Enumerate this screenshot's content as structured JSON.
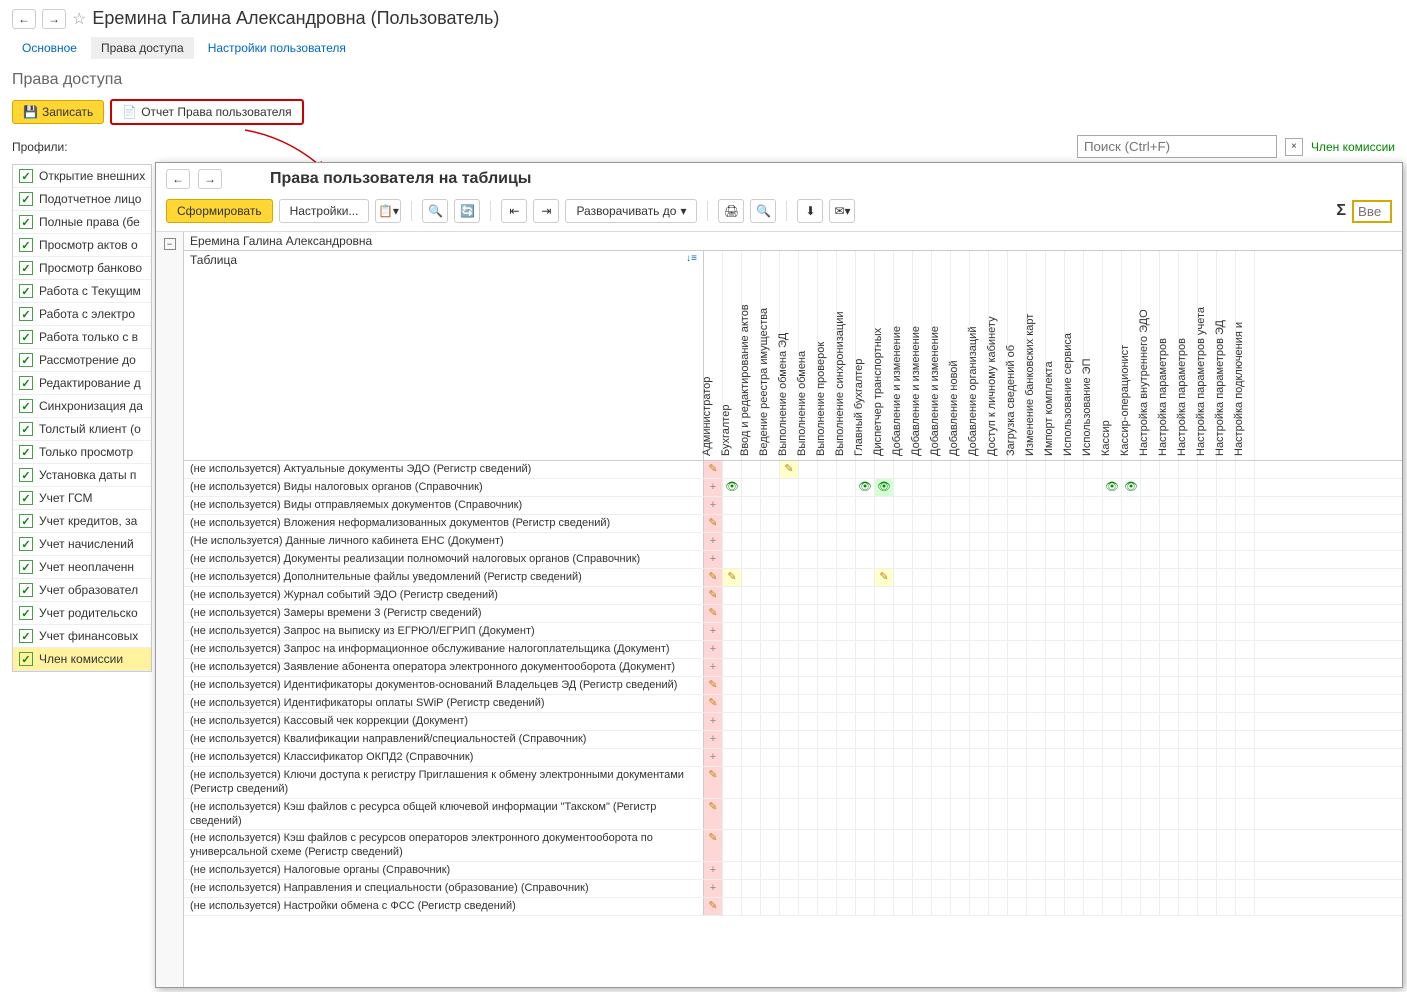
{
  "page": {
    "title": "Еремина Галина Александровна (Пользователь)",
    "section_title": "Права доступа"
  },
  "tabs": {
    "main": "Основное",
    "access": "Права доступа",
    "settings": "Настройки пользователя"
  },
  "toolbar": {
    "save": "Записать",
    "report": "Отчет Права пользователя"
  },
  "profiles": {
    "label": "Профили:",
    "search_placeholder": "Поиск (Ctrl+F)",
    "link": "Член комиссии",
    "items": [
      "Открытие внешних",
      "Подотчетное лицо",
      "Полные права (бе",
      "Просмотр актов о",
      "Просмотр банково",
      "Работа с Текущим",
      "Работа с электро",
      "Работа только с в",
      "Рассмотрение до",
      "Редактирование д",
      "Синхронизация да",
      "Толстый клиент (о",
      "Только просмотр",
      "Установка даты п",
      "Учет ГСМ",
      "Учет кредитов, за",
      "Учет начислений",
      "Учет неоплаченн",
      "Учет образовател",
      "Учет родительско",
      "Учет финансовых",
      "Член комиссии"
    ]
  },
  "popup": {
    "title": "Права пользователя на таблицы",
    "generate": "Сформировать",
    "settings": "Настройки...",
    "expand": "Разворачивать до",
    "search_placeholder": "Вве",
    "user_name": "Еремина Галина Александровна",
    "table_label": "Таблица"
  },
  "columns": [
    "Администратор",
    "Бухгалтер",
    "Ввод и редактирование актов",
    "Ведение реестра имущества",
    "Выполнение обмена ЭД",
    "Выполнение обмена",
    "Выполнение проверок",
    "Выполнение синхронизации",
    "Главный бухгалтер",
    "Диспетчер транспортных",
    "Добавление и изменение",
    "Добавление и изменение",
    "Добавление и изменение",
    "Добавление новой",
    "Добавление организаций",
    "Доступ к личному кабинету",
    "Загрузка сведений об",
    "Изменение банковских карт",
    "Импорт комплекта",
    "Использование сервиса",
    "Использование ЭП",
    "Кассир",
    "Кассир-операционист",
    "Настройка внутреннего ЭДО",
    "Настройка параметров",
    "Настройка параметров",
    "Настройка параметров учета",
    "Настройка параметров ЭД",
    "Настройка подключения и"
  ],
  "rows": [
    {
      "label": "(не используется) Актуальные документы ЭДО (Регистр сведений)",
      "cells": {
        "0": "p",
        "4": "py"
      }
    },
    {
      "label": "(не используется) Виды налоговых органов (Справочник)",
      "cells": {
        "0": "+",
        "1": "e",
        "8": "e",
        "9": "eg",
        "21": "e",
        "22": "e"
      }
    },
    {
      "label": "(не используется) Виды отправляемых документов (Справочник)",
      "cells": {
        "0": "+"
      }
    },
    {
      "label": "(не используется) Вложения неформализованных документов (Регистр сведений)",
      "cells": {
        "0": "p"
      }
    },
    {
      "label": "(Не используется) Данные личного кабинета ЕНС (Документ)",
      "cells": {
        "0": "+"
      }
    },
    {
      "label": "(не используется) Документы реализации полномочий налоговых органов (Справочник)",
      "cells": {
        "0": "+"
      }
    },
    {
      "label": "(не используется) Дополнительные файлы уведомлений (Регистр сведений)",
      "cells": {
        "0": "p",
        "1": "py",
        "9": "py"
      }
    },
    {
      "label": "(не используется) Журнал событий ЭДО (Регистр сведений)",
      "cells": {
        "0": "p"
      }
    },
    {
      "label": "(не используется) Замеры времени 3 (Регистр сведений)",
      "cells": {
        "0": "p"
      }
    },
    {
      "label": "(не используется) Запрос на выписку из ЕГРЮЛ/ЕГРИП (Документ)",
      "cells": {
        "0": "+"
      }
    },
    {
      "label": "(не используется) Запрос на информационное обслуживание налогоплательщика (Документ)",
      "cells": {
        "0": "+"
      }
    },
    {
      "label": "(не используется) Заявление абонента оператора электронного документооборота (Документ)",
      "cells": {
        "0": "+"
      }
    },
    {
      "label": "(не используется) Идентификаторы документов-оснований Владельцев ЭД (Регистр сведений)",
      "cells": {
        "0": "p"
      }
    },
    {
      "label": "(не используется) Идентификаторы оплаты SWiP (Регистр сведений)",
      "cells": {
        "0": "p"
      }
    },
    {
      "label": "(не используется) Кассовый чек коррекции (Документ)",
      "cells": {
        "0": "+"
      }
    },
    {
      "label": "(не используется) Квалификации направлений/специальностей (Справочник)",
      "cells": {
        "0": "+"
      }
    },
    {
      "label": "(не используется) Классификатор ОКПД2 (Справочник)",
      "cells": {
        "0": "+"
      }
    },
    {
      "label": "(не используется) Ключи доступа к регистру Приглашения к обмену электронными документами (Регистр сведений)",
      "cells": {
        "0": "p"
      }
    },
    {
      "label": "(не используется) Кэш файлов с ресурса общей ключевой информации \"Такском\" (Регистр сведений)",
      "cells": {
        "0": "p"
      }
    },
    {
      "label": "(не используется) Кэш файлов с ресурсов операторов электронного документооборота по универсальной схеме (Регистр сведений)",
      "cells": {
        "0": "p"
      }
    },
    {
      "label": "(не используется) Налоговые органы (Справочник)",
      "cells": {
        "0": "+"
      }
    },
    {
      "label": "(не используется) Направления и специальности (образование) (Справочник)",
      "cells": {
        "0": "+"
      }
    },
    {
      "label": "(не используется) Настройки обмена с ФСС (Регистр сведений)",
      "cells": {
        "0": "p"
      }
    }
  ],
  "icons": {
    "plus": "+",
    "pencil": "✎",
    "eye": "👁"
  },
  "colors": {
    "pink": "#ffd6d6",
    "yellow": "#ffffcc",
    "green": "#d6ffd6",
    "highlight": "#cc0000",
    "yellow_btn": "#ffd633"
  }
}
